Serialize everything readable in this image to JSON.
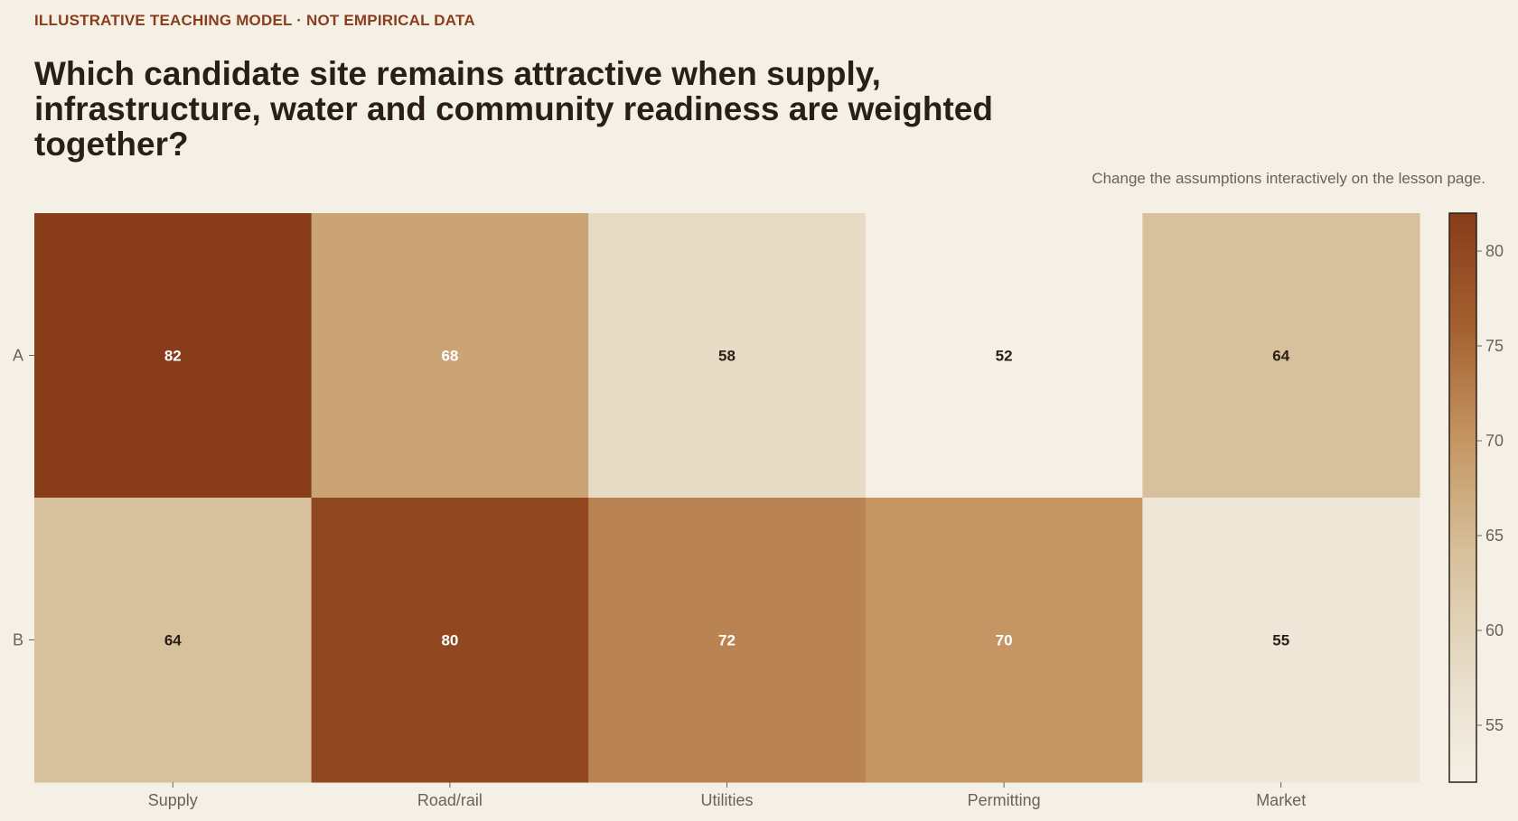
{
  "header": {
    "eyebrow": "ILLUSTRATIVE TEACHING MODEL · NOT EMPIRICAL DATA",
    "title": "Which candidate site remains attractive when supply, infrastructure, water and community readiness are weighted together?",
    "note": "Change the assumptions interactively on the lesson page."
  },
  "colors": {
    "background": "#f5f0e5",
    "scale_low": "#f5f0e5",
    "scale_mid": "#c59663",
    "scale_high": "#883c1a",
    "label_dark": "#2a1f15",
    "label_light": "#ffffff"
  },
  "chart_data": {
    "type": "heatmap",
    "title": "Which candidate site remains attractive when supply, infrastructure, water and community readiness are weighted together?",
    "x_categories": [
      "Supply",
      "Road/rail",
      "Utilities",
      "Permitting",
      "Market"
    ],
    "y_categories": [
      "A",
      "B"
    ],
    "values": [
      [
        82,
        68,
        58,
        52,
        64
      ],
      [
        64,
        80,
        72,
        70,
        55
      ]
    ],
    "colorbar": {
      "range": [
        52,
        82
      ],
      "ticks": [
        55,
        60,
        65,
        70,
        75,
        80
      ],
      "tick_labels": [
        "55",
        "60",
        "65",
        "70",
        "75",
        "80"
      ]
    },
    "xlabel": "",
    "ylabel": "",
    "grid": false
  }
}
